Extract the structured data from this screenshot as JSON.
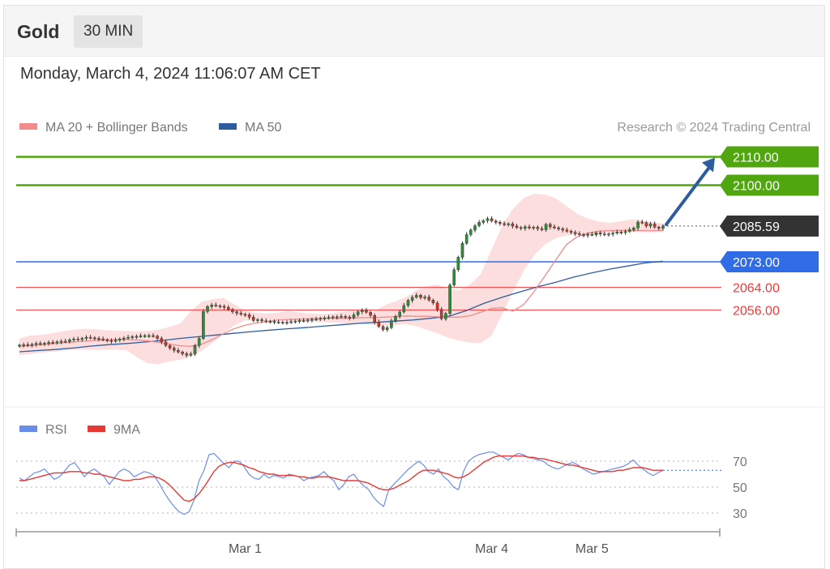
{
  "header": {
    "instrument": "Gold",
    "timeframe": "30 MIN"
  },
  "timestamp": "Monday, March 4, 2024 11:06:07 AM CET",
  "legend": {
    "ma20": "MA 20 + Bollinger Bands",
    "ma50": "MA 50",
    "credit": "Research © 2024 Trading Central",
    "rsi": "RSI",
    "rsi_ma": "9MA"
  },
  "colors": {
    "resistance": "#4fa60f",
    "last": "#333333",
    "pivot": "#2f6ce5",
    "support": "#f03a3a",
    "ma20": "#f28b8b",
    "ma50": "#2e5d9f",
    "bands": "#fbd3d3",
    "candle_up": "#2e8b3a",
    "candle_down": "#c0392b",
    "arrow": "#2e5d9f",
    "rsi": "#6a8ee8",
    "rsi_ma": "#e53935"
  },
  "chart_data": [
    {
      "type": "candlestick",
      "ylim": [
        2030,
        2117
      ],
      "levels": [
        {
          "name": "resistance",
          "value": 2110.0,
          "label": "2110.00"
        },
        {
          "name": "resistance",
          "value": 2100.0,
          "label": "2100.00"
        },
        {
          "name": "last",
          "value": 2085.59,
          "label": "2085.59"
        },
        {
          "name": "pivot",
          "value": 2073.0,
          "label": "2073.00"
        },
        {
          "name": "support",
          "value": 2064.0,
          "label": "2064.00"
        },
        {
          "name": "support",
          "value": 2056.0,
          "label": "2056.00"
        }
      ],
      "close": [
        2043.6,
        2043.8,
        2043.5,
        2043.9,
        2044.2,
        2044.0,
        2044.3,
        2044.6,
        2044.5,
        2044.8,
        2045.0,
        2044.9,
        2045.5,
        2045.8,
        2045.6,
        2046.0,
        2046.4,
        2046.2,
        2046.0,
        2045.8,
        2045.5,
        2045.3,
        2045.0,
        2045.4,
        2045.8,
        2046.1,
        2046.4,
        2046.6,
        2046.7,
        2046.9,
        2047.0,
        2047.0,
        2046.8,
        2046.0,
        2044.8,
        2043.5,
        2042.6,
        2041.8,
        2041.2,
        2040.6,
        2040.1,
        2040.5,
        2043.5,
        2046.0,
        2055.5,
        2057.2,
        2057.8,
        2057.5,
        2057.3,
        2056.9,
        2056.2,
        2055.4,
        2054.9,
        2054.5,
        2054.3,
        2053.5,
        2052.3,
        2052.6,
        2052.2,
        2051.9,
        2052.0,
        2051.8,
        2051.6,
        2051.7,
        2051.6,
        2051.9,
        2052.1,
        2052.3,
        2052.2,
        2052.5,
        2052.7,
        2052.8,
        2053.1,
        2053.2,
        2053.4,
        2053.6,
        2053.5,
        2053.8,
        2053.5,
        2053.2,
        2054.3,
        2055.4,
        2055.9,
        2055.2,
        2054.1,
        2051.8,
        2050.2,
        2049.1,
        2049.8,
        2052.2,
        2053.8,
        2055.3,
        2057.6,
        2059.4,
        2060.5,
        2061.2,
        2060.4,
        2060.6,
        2059.5,
        2058.5,
        2056.2,
        2052.9,
        2054.8,
        2064.8,
        2070.2,
        2074.6,
        2079.5,
        2082.6,
        2084.2,
        2085.7,
        2086.9,
        2087.5,
        2088.2,
        2087.4,
        2086.9,
        2086.5,
        2086.1,
        2086.4,
        2085.6,
        2085.1,
        2084.8,
        2085.3,
        2084.9,
        2085.2,
        2084.7,
        2084.3,
        2086.2,
        2085.3,
        2085.0,
        2084.6,
        2084.2,
        2083.8,
        2083.4,
        2082.9,
        2082.6,
        2082.3,
        2082.7,
        2082.5,
        2083.2,
        2082.8,
        2082.6,
        2082.8,
        2083.1,
        2083.5,
        2083.3,
        2083.7,
        2084.3,
        2084.9,
        2087.0,
        2086.8,
        2085.6,
        2086.4,
        2085.2,
        2084.8,
        2085.59
      ],
      "ma20": [
        2043.2,
        2043.5,
        2043.8,
        2044.1,
        2044.4,
        2044.7,
        2045.0,
        2045.3,
        2045.5,
        2045.6,
        2045.6,
        2045.4,
        2045.1,
        2044.6,
        2044.0,
        2043.4,
        2043.2,
        2044.0,
        2045.6,
        2047.6,
        2049.4,
        2050.6,
        2051.4,
        2052.0,
        2052.4,
        2052.7,
        2052.8,
        2052.9,
        2053.0,
        2053.1,
        2053.1,
        2053.2,
        2053.3,
        2053.3,
        2053.5,
        2053.7,
        2053.9,
        2053.8,
        2053.8,
        2053.6,
        2053.5,
        2053.5,
        2054.0,
        2055.2,
        2056.6,
        2056.8,
        2055.6,
        2057.9,
        2062.6,
        2068.1,
        2073.7,
        2079.1,
        2081.8,
        2083.1,
        2083.8,
        2084.0,
        2084.1,
        2084.1,
        2084.0,
        2084.0,
        2084.1
      ],
      "ma50": [
        2041.3,
        2041.7,
        2042.1,
        2042.6,
        2043.3,
        2043.8,
        2044.2,
        2044.7,
        2045.3,
        2046.0,
        2046.6,
        2047.2,
        2047.8,
        2048.4,
        2048.9,
        2049.4,
        2049.8,
        2050.3,
        2050.8,
        2051.3,
        2051.7,
        2052.1,
        2052.5,
        2053.1,
        2053.8,
        2055.8,
        2058.4,
        2060.5,
        2062.4,
        2064.2,
        2065.8,
        2067.6,
        2069.1,
        2070.4,
        2071.5,
        2072.6,
        2073.2
      ],
      "bb_upper": [
        2046.0,
        2047.0,
        2047.2,
        2047.8,
        2048.5,
        2049.0,
        2049.4,
        2049.2,
        2048.9,
        2048.7,
        2048.6,
        2048.5,
        2048.7,
        2049.1,
        2050.1,
        2051.2,
        2055.7,
        2059.0,
        2059.8,
        2060.3,
        2058.1,
        2056.0,
        2055.0,
        2054.8,
        2055.0,
        2055.6,
        2055.2,
        2054.8,
        2054.6,
        2054.8,
        2055.3,
        2055.6,
        2056.0,
        2055.4,
        2057.6,
        2059.0,
        2060.5,
        2063.0,
        2064.4,
        2065.0,
        2063.3,
        2063.0,
        2065.0,
        2068.6,
        2077.2,
        2085.7,
        2091.6,
        2095.5,
        2097.0,
        2096.7,
        2095.4,
        2092.6,
        2089.9,
        2088.2,
        2087.2,
        2086.8,
        2087.2,
        2088.0,
        2087.6,
        2086.9,
        2086.5
      ],
      "bb_lower": [
        2040.0,
        2040.5,
        2041.0,
        2041.3,
        2041.7,
        2042.0,
        2042.1,
        2042.0,
        2042.0,
        2042.0,
        2041.8,
        2039.2,
        2037.2,
        2036.9,
        2037.9,
        2038.5,
        2039.6,
        2041.7,
        2044.4,
        2047.8,
        2050.5,
        2052.3,
        2052.6,
        2052.6,
        2052.4,
        2052.2,
        2052.1,
        2052.1,
        2051.7,
        2051.6,
        2051.4,
        2051.2,
        2051.0,
        2050.8,
        2050.6,
        2050.7,
        2051.0,
        2050.3,
        2049.0,
        2047.7,
        2046.2,
        2045.2,
        2044.5,
        2044.4,
        2046.9,
        2054.5,
        2062.4,
        2069.8,
        2075.3,
        2079.2,
        2081.3,
        2082.3,
        2082.5,
        2082.5,
        2082.8,
        2083.2,
        2083.4,
        2083.5,
        2083.5,
        2083.4,
        2083.5
      ],
      "forecast": {
        "from": 2085.59,
        "to": 2110.0
      },
      "x_ticks": [
        {
          "label": "Mar 1",
          "index": 54
        },
        {
          "label": "Mar 4",
          "index": 113
        },
        {
          "label": "Mar 5",
          "index": 137
        }
      ]
    },
    {
      "type": "line",
      "title": "RSI",
      "ylim": [
        25,
        80
      ],
      "levels": [
        70,
        50,
        30
      ],
      "level_labels": [
        "70",
        "50",
        "30"
      ],
      "current_level": 63,
      "rsi": [
        57,
        55,
        58,
        61,
        62,
        64,
        60,
        56,
        58,
        62,
        67,
        69,
        64,
        58,
        62,
        64,
        61,
        58,
        52,
        57,
        62,
        64,
        62,
        58,
        60,
        62,
        61,
        59,
        53,
        46,
        40,
        35,
        31,
        29,
        31,
        40,
        55,
        63,
        75,
        76,
        72,
        68,
        65,
        70,
        70,
        66,
        60,
        57,
        56,
        60,
        57,
        59,
        58,
        57,
        60,
        59,
        58,
        55,
        57,
        58,
        59,
        62,
        58,
        55,
        48,
        52,
        58,
        60,
        55,
        51,
        48,
        42,
        38,
        35,
        48,
        52,
        56,
        60,
        64,
        67,
        70,
        67,
        62,
        60,
        64,
        58,
        55,
        50,
        48,
        62,
        70,
        73,
        75,
        76,
        77,
        77,
        75,
        73,
        71,
        74,
        76,
        75,
        73,
        72,
        71,
        70,
        67,
        65,
        64,
        66,
        68,
        69,
        67,
        64,
        62,
        60,
        61,
        62,
        63,
        64,
        65,
        66,
        68,
        71,
        67,
        64,
        61,
        59,
        61,
        63
      ],
      "rsi_ma": [
        55,
        55,
        56,
        57,
        58,
        59,
        60,
        61,
        61,
        61,
        62,
        62,
        62,
        61,
        61,
        60,
        60,
        59,
        58,
        57,
        56,
        55,
        55,
        56,
        56,
        57,
        58,
        58,
        57,
        55,
        52,
        48,
        44,
        40,
        39,
        41,
        45,
        50,
        56,
        62,
        66,
        68,
        69,
        69,
        68,
        67,
        65,
        64,
        62,
        61,
        60,
        60,
        59,
        59,
        59,
        59,
        58,
        58,
        57,
        57,
        58,
        58,
        58,
        57,
        56,
        55,
        55,
        55,
        55,
        54,
        53,
        51,
        49,
        48,
        48,
        49,
        51,
        53,
        55,
        58,
        61,
        63,
        63,
        63,
        62,
        61,
        60,
        58,
        57,
        58,
        60,
        63,
        66,
        69,
        71,
        73,
        74,
        74,
        74,
        74,
        74,
        74,
        73,
        73,
        72,
        72,
        71,
        70,
        69,
        68,
        67,
        67,
        66,
        65,
        64,
        63,
        62,
        62,
        62,
        62,
        63,
        63,
        64,
        65,
        65,
        65,
        64,
        63,
        63,
        63
      ]
    }
  ]
}
